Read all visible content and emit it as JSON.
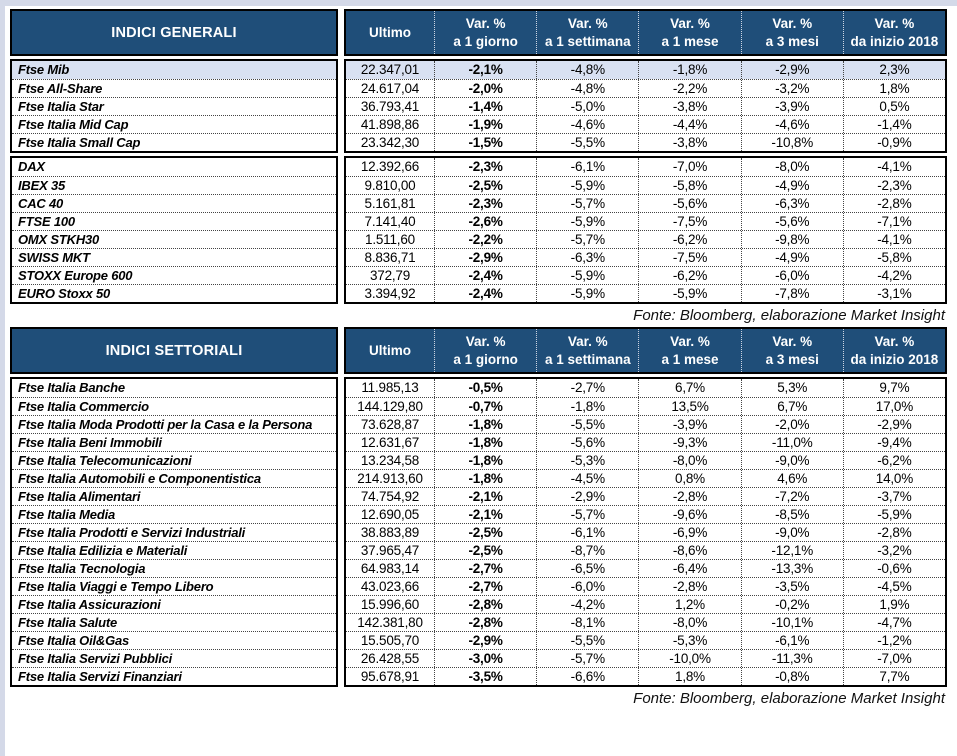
{
  "colors": {
    "header_bg": "#1F4E79",
    "row_highlight": "#D9E1F2",
    "page_edge": "#D4D9E8"
  },
  "columns": [
    {
      "line1": "Ultimo",
      "line2": ""
    },
    {
      "line1": "Var. %",
      "line2": "a 1 giorno"
    },
    {
      "line1": "Var. %",
      "line2": "a 1 settimana"
    },
    {
      "line1": "Var. %",
      "line2": "a 1 mese"
    },
    {
      "line1": "Var. %",
      "line2": "a 3 mesi"
    },
    {
      "line1": "Var. %",
      "line2": "da inizio 2018"
    }
  ],
  "tables": [
    {
      "title": "INDICI GENERALI",
      "source": "Fonte: Bloomberg, elaborazione Market Insight",
      "groups": [
        {
          "rows": [
            {
              "label": "Ftse Mib",
              "highlight": true,
              "values": [
                "22.347,01",
                "-2,1%",
                "-4,8%",
                "-1,8%",
                "-2,9%",
                "2,3%"
              ]
            },
            {
              "label": "Ftse All-Share",
              "values": [
                "24.617,04",
                "-2,0%",
                "-4,8%",
                "-2,2%",
                "-3,2%",
                "1,8%"
              ]
            },
            {
              "label": "Ftse Italia Star",
              "values": [
                "36.793,41",
                "-1,4%",
                "-5,0%",
                "-3,8%",
                "-3,9%",
                "0,5%"
              ]
            },
            {
              "label": "Ftse Italia Mid Cap",
              "values": [
                "41.898,86",
                "-1,9%",
                "-4,6%",
                "-4,4%",
                "-4,6%",
                "-1,4%"
              ]
            },
            {
              "label": "Ftse Italia Small Cap",
              "values": [
                "23.342,30",
                "-1,5%",
                "-5,5%",
                "-3,8%",
                "-10,8%",
                "-0,9%"
              ]
            }
          ]
        },
        {
          "rows": [
            {
              "label": "DAX",
              "values": [
                "12.392,66",
                "-2,3%",
                "-6,1%",
                "-7,0%",
                "-8,0%",
                "-4,1%"
              ]
            },
            {
              "label": "IBEX 35",
              "values": [
                "9.810,00",
                "-2,5%",
                "-5,9%",
                "-5,8%",
                "-4,9%",
                "-2,3%"
              ]
            },
            {
              "label": "CAC 40",
              "values": [
                "5.161,81",
                "-2,3%",
                "-5,7%",
                "-5,6%",
                "-6,3%",
                "-2,8%"
              ]
            },
            {
              "label": "FTSE 100",
              "values": [
                "7.141,40",
                "-2,6%",
                "-5,9%",
                "-7,5%",
                "-5,6%",
                "-7,1%"
              ]
            },
            {
              "label": "OMX STKH30",
              "values": [
                "1.511,60",
                "-2,2%",
                "-5,7%",
                "-6,2%",
                "-9,8%",
                "-4,1%"
              ]
            },
            {
              "label": "SWISS MKT",
              "values": [
                "8.836,71",
                "-2,9%",
                "-6,3%",
                "-7,5%",
                "-4,9%",
                "-5,8%"
              ]
            },
            {
              "label": "STOXX Europe 600",
              "values": [
                "372,79",
                "-2,4%",
                "-5,9%",
                "-6,2%",
                "-6,0%",
                "-4,2%"
              ]
            },
            {
              "label": "EURO Stoxx 50",
              "values": [
                "3.394,92",
                "-2,4%",
                "-5,9%",
                "-5,9%",
                "-7,8%",
                "-3,1%"
              ]
            }
          ]
        }
      ]
    },
    {
      "title": "INDICI SETTORIALI",
      "source": "Fonte: Bloomberg, elaborazione Market Insight",
      "groups": [
        {
          "rows": [
            {
              "label": "Ftse Italia Banche",
              "values": [
                "11.985,13",
                "-0,5%",
                "-2,7%",
                "6,7%",
                "5,3%",
                "9,7%"
              ]
            },
            {
              "label": "Ftse Italia Commercio",
              "values": [
                "144.129,80",
                "-0,7%",
                "-1,8%",
                "13,5%",
                "6,7%",
                "17,0%"
              ]
            },
            {
              "label": "Ftse Italia Moda Prodotti per la Casa e la Persona",
              "values": [
                "73.628,87",
                "-1,8%",
                "-5,5%",
                "-3,9%",
                "-2,0%",
                "-2,9%"
              ]
            },
            {
              "label": "Ftse Italia Beni Immobili",
              "values": [
                "12.631,67",
                "-1,8%",
                "-5,6%",
                "-9,3%",
                "-11,0%",
                "-9,4%"
              ]
            },
            {
              "label": "Ftse Italia Telecomunicazioni",
              "values": [
                "13.234,58",
                "-1,8%",
                "-5,3%",
                "-8,0%",
                "-9,0%",
                "-6,2%"
              ]
            },
            {
              "label": "Ftse Italia Automobili e Componentistica",
              "values": [
                "214.913,60",
                "-1,8%",
                "-4,5%",
                "0,8%",
                "4,6%",
                "14,0%"
              ]
            },
            {
              "label": "Ftse Italia Alimentari",
              "values": [
                "74.754,92",
                "-2,1%",
                "-2,9%",
                "-2,8%",
                "-7,2%",
                "-3,7%"
              ]
            },
            {
              "label": "Ftse Italia Media",
              "values": [
                "12.690,05",
                "-2,1%",
                "-5,7%",
                "-9,6%",
                "-8,5%",
                "-5,9%"
              ]
            },
            {
              "label": "Ftse Italia Prodotti e Servizi Industriali",
              "values": [
                "38.883,89",
                "-2,5%",
                "-6,1%",
                "-6,9%",
                "-9,0%",
                "-2,8%"
              ]
            },
            {
              "label": "Ftse Italia Edilizia e Materiali",
              "values": [
                "37.965,47",
                "-2,5%",
                "-8,7%",
                "-8,6%",
                "-12,1%",
                "-3,2%"
              ]
            },
            {
              "label": "Ftse Italia Tecnologia",
              "values": [
                "64.983,14",
                "-2,7%",
                "-6,5%",
                "-6,4%",
                "-13,3%",
                "-0,6%"
              ]
            },
            {
              "label": "Ftse Italia Viaggi e Tempo Libero",
              "values": [
                "43.023,66",
                "-2,7%",
                "-6,0%",
                "-2,8%",
                "-3,5%",
                "-4,5%"
              ]
            },
            {
              "label": "Ftse Italia Assicurazioni",
              "values": [
                "15.996,60",
                "-2,8%",
                "-4,2%",
                "1,2%",
                "-0,2%",
                "1,9%"
              ]
            },
            {
              "label": "Ftse Italia Salute",
              "values": [
                "142.381,80",
                "-2,8%",
                "-8,1%",
                "-8,0%",
                "-10,1%",
                "-4,7%"
              ]
            },
            {
              "label": "Ftse Italia Oil&Gas",
              "values": [
                "15.505,70",
                "-2,9%",
                "-5,5%",
                "-5,3%",
                "-6,1%",
                "-1,2%"
              ]
            },
            {
              "label": "Ftse Italia Servizi Pubblici",
              "values": [
                "26.428,55",
                "-3,0%",
                "-5,7%",
                "-10,0%",
                "-11,3%",
                "-7,0%"
              ]
            },
            {
              "label": "Ftse Italia Servizi Finanziari",
              "values": [
                "95.678,91",
                "-3,5%",
                "-6,6%",
                "1,8%",
                "-0,8%",
                "7,7%"
              ]
            }
          ]
        }
      ]
    }
  ]
}
